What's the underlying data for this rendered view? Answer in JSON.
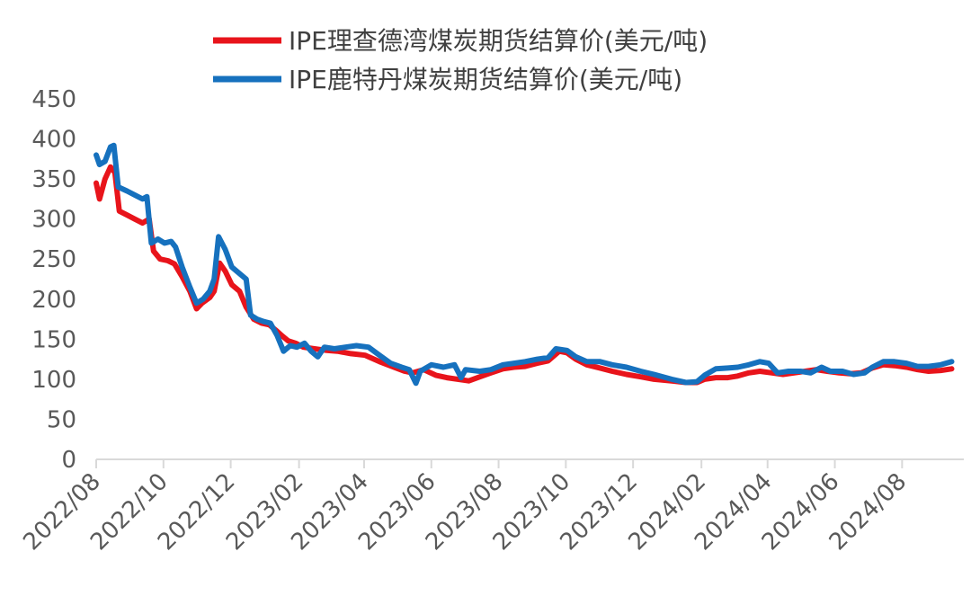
{
  "chart_data": {
    "type": "line",
    "title": "",
    "xlabel": "",
    "ylabel": "",
    "ylim": [
      0,
      450
    ],
    "y_ticks": [
      0,
      50,
      100,
      150,
      200,
      250,
      300,
      350,
      400,
      450
    ],
    "x_tick_labels": [
      "2022/08",
      "2022/10",
      "2022/12",
      "2023/02",
      "2023/04",
      "2023/06",
      "2023/08",
      "2023/10",
      "2023/12",
      "2024/02",
      "2024/04",
      "2024/06",
      "2024/08"
    ],
    "grid": false,
    "legend_position": "top",
    "series": [
      {
        "name": "IPE理查德湾煤炭期货结算价(美元/吨)",
        "color": "#E8141B",
        "points": [
          [
            "2022-08-01",
            345
          ],
          [
            "2022-08-04",
            325
          ],
          [
            "2022-08-09",
            350
          ],
          [
            "2022-08-14",
            365
          ],
          [
            "2022-08-18",
            358
          ],
          [
            "2022-08-22",
            310
          ],
          [
            "2022-08-29",
            305
          ],
          [
            "2022-09-05",
            300
          ],
          [
            "2022-09-12",
            295
          ],
          [
            "2022-09-18",
            300
          ],
          [
            "2022-09-22",
            260
          ],
          [
            "2022-09-28",
            250
          ],
          [
            "2022-10-05",
            248
          ],
          [
            "2022-10-11",
            244
          ],
          [
            "2022-10-18",
            228
          ],
          [
            "2022-10-25",
            210
          ],
          [
            "2022-10-31",
            188
          ],
          [
            "2022-11-05",
            195
          ],
          [
            "2022-11-12",
            202
          ],
          [
            "2022-11-16",
            210
          ],
          [
            "2022-11-21",
            245
          ],
          [
            "2022-11-26",
            235
          ],
          [
            "2022-12-02",
            218
          ],
          [
            "2022-12-09",
            210
          ],
          [
            "2022-12-15",
            190
          ],
          [
            "2022-12-22",
            175
          ],
          [
            "2022-12-29",
            170
          ],
          [
            "2023-01-05",
            168
          ],
          [
            "2023-01-12",
            160
          ],
          [
            "2023-01-16",
            155
          ],
          [
            "2023-01-22",
            148
          ],
          [
            "2023-01-29",
            145
          ],
          [
            "2023-02-05",
            140
          ],
          [
            "2023-02-15",
            138
          ],
          [
            "2023-02-26",
            136
          ],
          [
            "2023-03-08",
            135
          ],
          [
            "2023-03-20",
            132
          ],
          [
            "2023-04-02",
            130
          ],
          [
            "2023-04-15",
            122
          ],
          [
            "2023-04-28",
            115
          ],
          [
            "2023-05-08",
            110
          ],
          [
            "2023-05-15",
            108
          ],
          [
            "2023-05-25",
            112
          ],
          [
            "2023-06-05",
            105
          ],
          [
            "2023-06-15",
            102
          ],
          [
            "2023-06-25",
            100
          ],
          [
            "2023-07-05",
            98
          ],
          [
            "2023-07-15",
            103
          ],
          [
            "2023-07-25",
            108
          ],
          [
            "2023-08-05",
            113
          ],
          [
            "2023-08-15",
            115
          ],
          [
            "2023-08-25",
            116
          ],
          [
            "2023-09-05",
            120
          ],
          [
            "2023-09-15",
            123
          ],
          [
            "2023-09-25",
            135
          ],
          [
            "2023-10-02",
            133
          ],
          [
            "2023-10-10",
            125
          ],
          [
            "2023-10-20",
            118
          ],
          [
            "2023-11-01",
            114
          ],
          [
            "2023-11-12",
            110
          ],
          [
            "2023-11-25",
            106
          ],
          [
            "2023-12-08",
            103
          ],
          [
            "2023-12-20",
            100
          ],
          [
            "2024-01-05",
            98
          ],
          [
            "2024-01-18",
            96
          ],
          [
            "2024-01-28",
            96
          ],
          [
            "2024-02-04",
            100
          ],
          [
            "2024-02-14",
            102
          ],
          [
            "2024-02-25",
            102
          ],
          [
            "2024-03-05",
            104
          ],
          [
            "2024-03-15",
            108
          ],
          [
            "2024-03-25",
            110
          ],
          [
            "2024-04-05",
            108
          ],
          [
            "2024-04-15",
            106
          ],
          [
            "2024-04-25",
            108
          ],
          [
            "2024-05-05",
            110
          ],
          [
            "2024-05-15",
            112
          ],
          [
            "2024-05-25",
            110
          ],
          [
            "2024-06-05",
            108
          ],
          [
            "2024-06-15",
            107
          ],
          [
            "2024-06-25",
            108
          ],
          [
            "2024-07-05",
            114
          ],
          [
            "2024-07-15",
            118
          ],
          [
            "2024-07-25",
            117
          ],
          [
            "2024-08-05",
            115
          ],
          [
            "2024-08-15",
            112
          ],
          [
            "2024-08-25",
            110
          ],
          [
            "2024-09-05",
            111
          ],
          [
            "2024-09-15",
            113
          ]
        ]
      },
      {
        "name": "IPE鹿特丹煤炭期货结算价(美元/吨)",
        "color": "#1671BE",
        "points": [
          [
            "2022-08-01",
            380
          ],
          [
            "2022-08-04",
            368
          ],
          [
            "2022-08-09",
            372
          ],
          [
            "2022-08-14",
            390
          ],
          [
            "2022-08-17",
            392
          ],
          [
            "2022-08-21",
            340
          ],
          [
            "2022-08-29",
            335
          ],
          [
            "2022-09-05",
            330
          ],
          [
            "2022-09-12",
            325
          ],
          [
            "2022-09-16",
            328
          ],
          [
            "2022-09-20",
            270
          ],
          [
            "2022-09-26",
            275
          ],
          [
            "2022-10-02",
            270
          ],
          [
            "2022-10-08",
            272
          ],
          [
            "2022-10-12",
            265
          ],
          [
            "2022-10-18",
            240
          ],
          [
            "2022-10-25",
            215
          ],
          [
            "2022-10-31",
            195
          ],
          [
            "2022-11-06",
            200
          ],
          [
            "2022-11-12",
            210
          ],
          [
            "2022-11-16",
            225
          ],
          [
            "2022-11-20",
            278
          ],
          [
            "2022-11-26",
            262
          ],
          [
            "2022-12-02",
            240
          ],
          [
            "2022-12-09",
            232
          ],
          [
            "2022-12-15",
            225
          ],
          [
            "2022-12-19",
            180
          ],
          [
            "2022-12-25",
            175
          ],
          [
            "2022-12-31",
            172
          ],
          [
            "2023-01-06",
            170
          ],
          [
            "2023-01-12",
            155
          ],
          [
            "2023-01-18",
            135
          ],
          [
            "2023-01-24",
            142
          ],
          [
            "2023-01-30",
            140
          ],
          [
            "2023-02-06",
            145
          ],
          [
            "2023-02-12",
            135
          ],
          [
            "2023-02-18",
            128
          ],
          [
            "2023-02-24",
            140
          ],
          [
            "2023-03-05",
            138
          ],
          [
            "2023-03-15",
            140
          ],
          [
            "2023-03-25",
            142
          ],
          [
            "2023-04-05",
            140
          ],
          [
            "2023-04-15",
            130
          ],
          [
            "2023-04-25",
            120
          ],
          [
            "2023-05-05",
            115
          ],
          [
            "2023-05-12",
            112
          ],
          [
            "2023-05-18",
            95
          ],
          [
            "2023-05-22",
            110
          ],
          [
            "2023-06-01",
            118
          ],
          [
            "2023-06-12",
            115
          ],
          [
            "2023-06-22",
            118
          ],
          [
            "2023-06-28",
            102
          ],
          [
            "2023-07-02",
            112
          ],
          [
            "2023-07-15",
            110
          ],
          [
            "2023-07-25",
            112
          ],
          [
            "2023-08-05",
            118
          ],
          [
            "2023-08-15",
            120
          ],
          [
            "2023-08-25",
            122
          ],
          [
            "2023-09-05",
            125
          ],
          [
            "2023-09-15",
            127
          ],
          [
            "2023-09-22",
            138
          ],
          [
            "2023-10-02",
            136
          ],
          [
            "2023-10-10",
            128
          ],
          [
            "2023-10-20",
            122
          ],
          [
            "2023-11-01",
            122
          ],
          [
            "2023-11-12",
            118
          ],
          [
            "2023-11-25",
            115
          ],
          [
            "2023-12-08",
            110
          ],
          [
            "2023-12-20",
            106
          ],
          [
            "2024-01-05",
            100
          ],
          [
            "2024-01-18",
            96
          ],
          [
            "2024-01-28",
            97
          ],
          [
            "2024-02-04",
            105
          ],
          [
            "2024-02-14",
            113
          ],
          [
            "2024-02-25",
            114
          ],
          [
            "2024-03-05",
            115
          ],
          [
            "2024-03-15",
            118
          ],
          [
            "2024-03-25",
            122
          ],
          [
            "2024-04-02",
            120
          ],
          [
            "2024-04-10",
            108
          ],
          [
            "2024-04-20",
            110
          ],
          [
            "2024-05-01",
            110
          ],
          [
            "2024-05-10",
            108
          ],
          [
            "2024-05-20",
            115
          ],
          [
            "2024-05-28",
            110
          ],
          [
            "2024-06-08",
            110
          ],
          [
            "2024-06-18",
            106
          ],
          [
            "2024-06-28",
            108
          ],
          [
            "2024-07-05",
            115
          ],
          [
            "2024-07-15",
            122
          ],
          [
            "2024-07-25",
            122
          ],
          [
            "2024-08-05",
            120
          ],
          [
            "2024-08-15",
            116
          ],
          [
            "2024-08-25",
            116
          ],
          [
            "2024-09-05",
            118
          ],
          [
            "2024-09-15",
            122
          ]
        ]
      }
    ]
  }
}
